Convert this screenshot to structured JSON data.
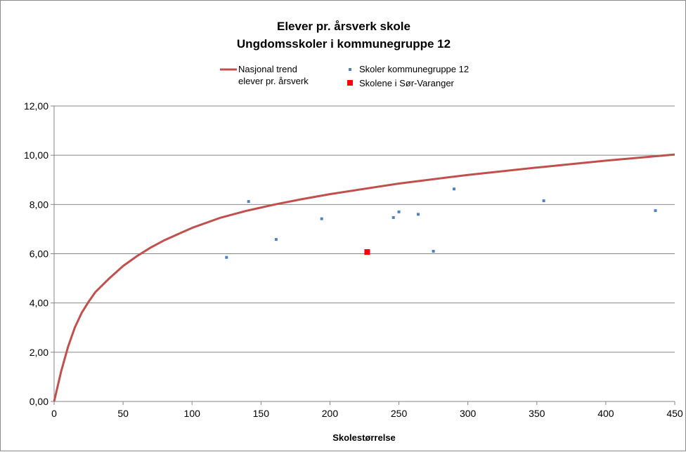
{
  "chart_data": {
    "type": "scatter",
    "title": [
      "Elever pr. årsverk skole",
      "Ungdomsskoler i kommunegruppe 12"
    ],
    "xlabel": "Skolestørrelse",
    "ylabel": "",
    "xlim": [
      0,
      450
    ],
    "ylim": [
      0,
      12
    ],
    "x_ticks": [
      0,
      50,
      100,
      150,
      200,
      250,
      300,
      350,
      400,
      450
    ],
    "y_ticks": [
      0,
      2,
      4,
      6,
      8,
      10,
      12
    ],
    "y_tick_labels": [
      "0,00",
      "2,00",
      "4,00",
      "6,00",
      "8,00",
      "10,00",
      "12,00"
    ],
    "grid": "horizontal",
    "legend_position": "top",
    "series": [
      {
        "name": [
          "Nasjonal trend",
          "elever pr. årsverk"
        ],
        "kind": "line",
        "color": "#c0504d",
        "points": [
          [
            0,
            0
          ],
          [
            5,
            1.2
          ],
          [
            10,
            2.2
          ],
          [
            15,
            3.0
          ],
          [
            20,
            3.6
          ],
          [
            25,
            4.05
          ],
          [
            30,
            4.45
          ],
          [
            40,
            5.0
          ],
          [
            50,
            5.5
          ],
          [
            60,
            5.9
          ],
          [
            70,
            6.25
          ],
          [
            80,
            6.55
          ],
          [
            100,
            7.05
          ],
          [
            120,
            7.45
          ],
          [
            140,
            7.75
          ],
          [
            160,
            8.0
          ],
          [
            180,
            8.22
          ],
          [
            200,
            8.42
          ],
          [
            250,
            8.85
          ],
          [
            300,
            9.2
          ],
          [
            350,
            9.5
          ],
          [
            400,
            9.78
          ],
          [
            450,
            10.03
          ]
        ]
      },
      {
        "name": "Skoler kommunegruppe 12",
        "kind": "scatter",
        "color": "#4f81bd",
        "points": [
          [
            125,
            5.85
          ],
          [
            141,
            8.12
          ],
          [
            161,
            6.58
          ],
          [
            194,
            7.42
          ],
          [
            246,
            7.47
          ],
          [
            250,
            7.7
          ],
          [
            264,
            7.6
          ],
          [
            275,
            6.1
          ],
          [
            290,
            8.63
          ],
          [
            355,
            8.15
          ],
          [
            436,
            7.75
          ]
        ]
      },
      {
        "name": "Skolene i Sør-Varanger",
        "kind": "scatter",
        "color": "#ff0000",
        "points": [
          [
            227,
            6.07
          ]
        ]
      }
    ]
  }
}
